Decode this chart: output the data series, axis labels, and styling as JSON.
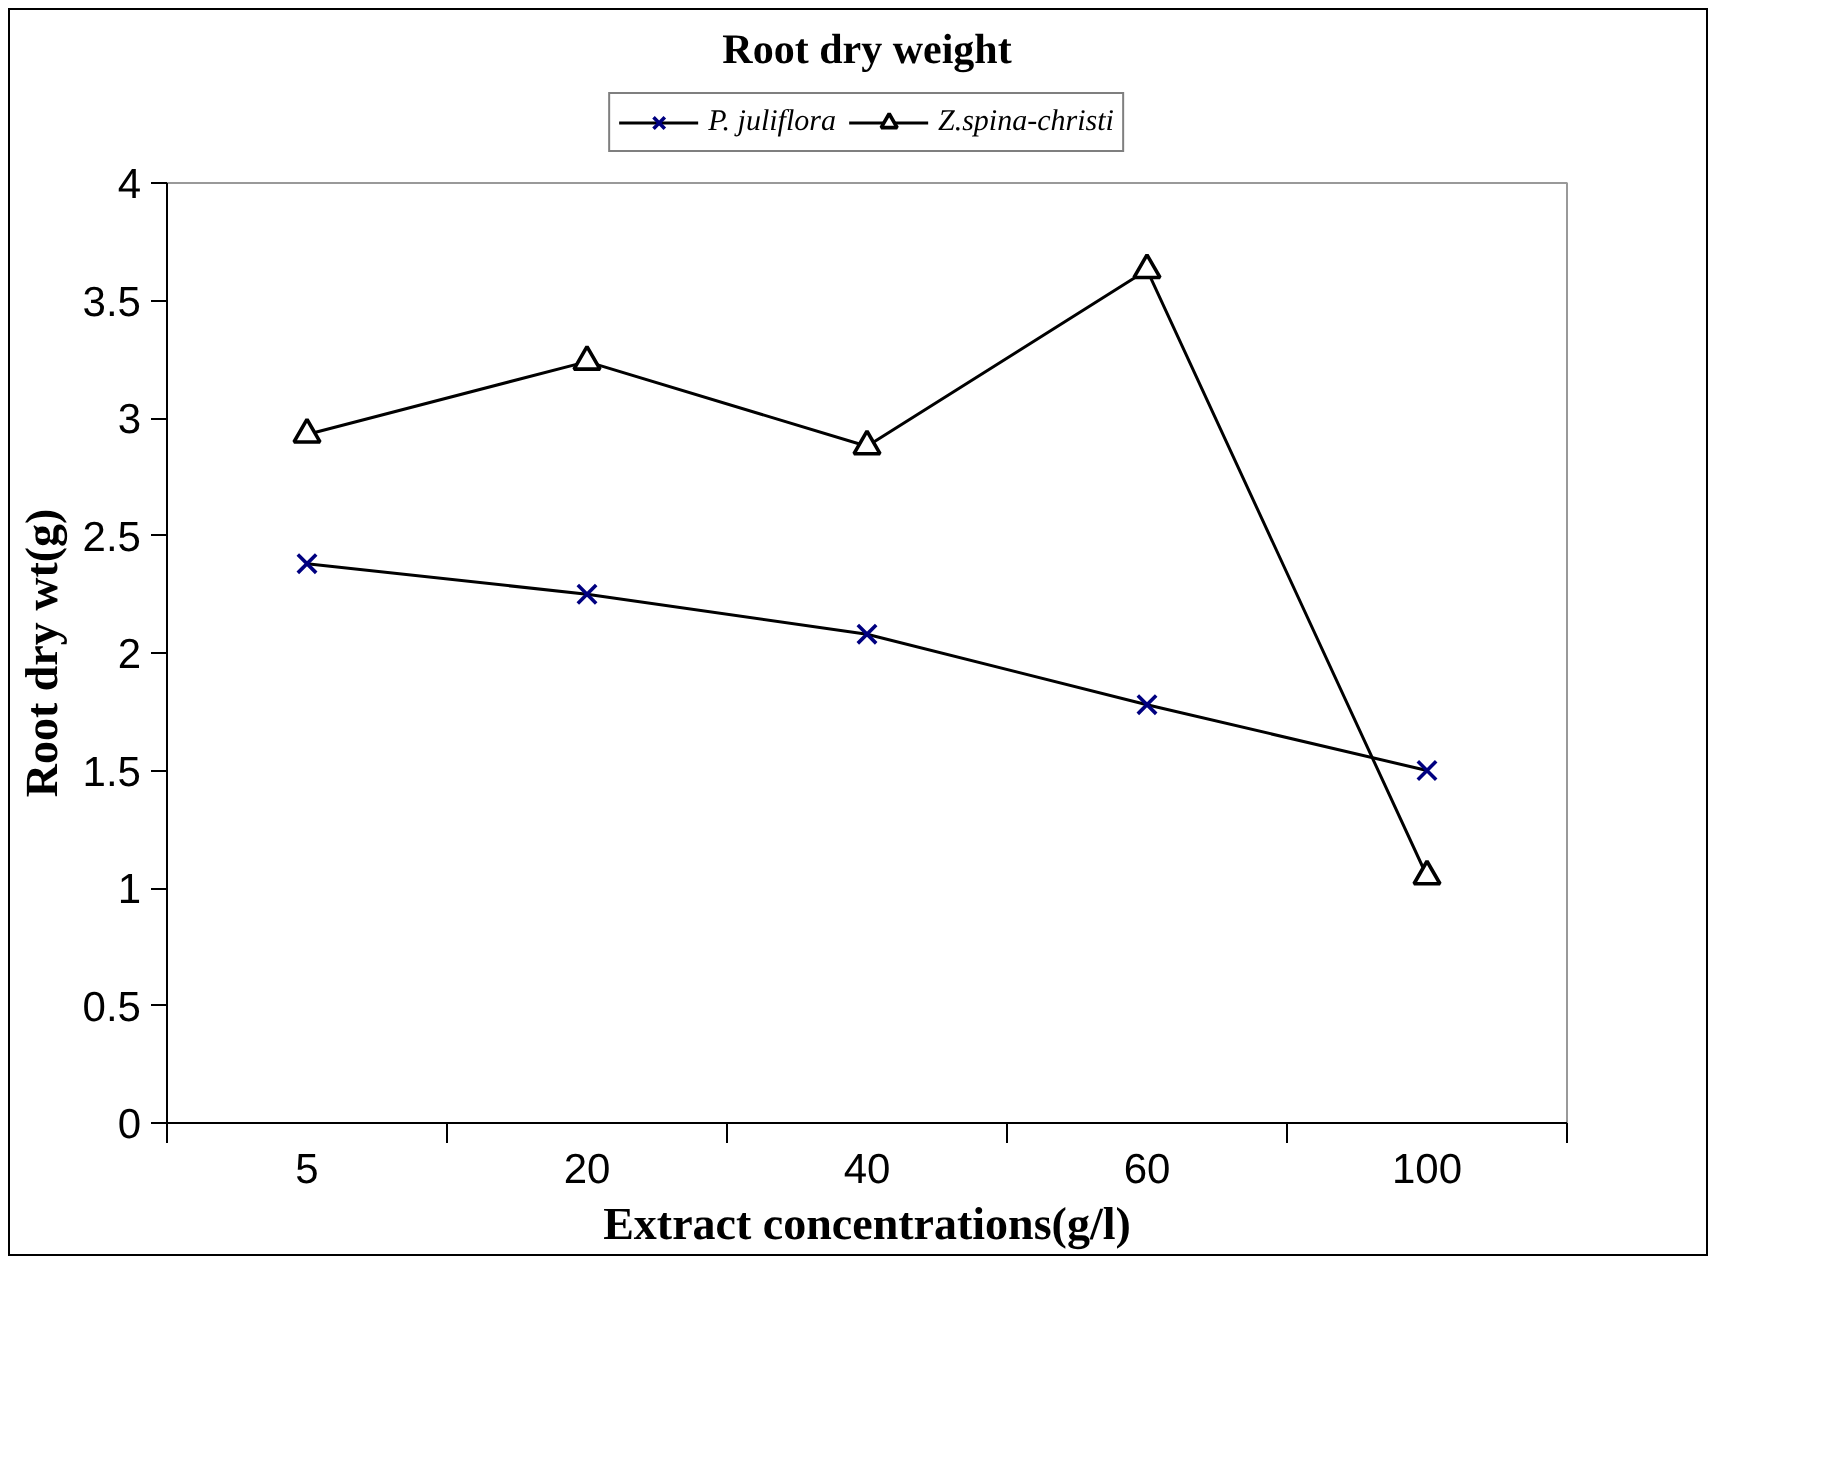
{
  "chart_data": {
    "type": "line",
    "title": "Root dry weight",
    "xlabel": "Extract concentrations(g/l)",
    "ylabel": "Root dry wt(g)",
    "categories": [
      "5",
      "20",
      "40",
      "60",
      "100"
    ],
    "series": [
      {
        "name": "P. juliflora",
        "color": "#000080",
        "marker": "cross",
        "values": [
          2.38,
          2.25,
          2.08,
          1.78,
          1.5
        ]
      },
      {
        "name": "Z.spina-christi",
        "color": "#000000",
        "marker": "triangle",
        "values": [
          2.93,
          3.24,
          2.88,
          3.63,
          1.05
        ]
      }
    ],
    "ylim": [
      0,
      4
    ],
    "yticks": [
      0,
      0.5,
      1,
      1.5,
      2,
      2.5,
      3,
      3.5,
      4
    ],
    "grid": false,
    "legend": "top",
    "line_style": "solid"
  }
}
